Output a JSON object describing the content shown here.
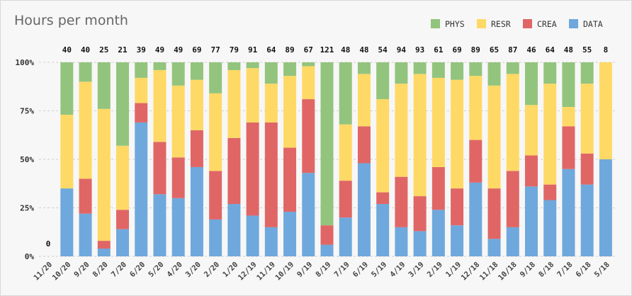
{
  "chart_data": {
    "type": "bar",
    "stacked": "percent",
    "title": "Hours per month",
    "xlabel": "",
    "ylabel": "",
    "ylim": [
      0,
      100
    ],
    "y_ticks": [
      "0%",
      "25%",
      "50%",
      "75%",
      "100%"
    ],
    "grid": true,
    "legend_position": "top-right",
    "categories": [
      "11/20",
      "10/20",
      "9/20",
      "8/20",
      "7/20",
      "6/20",
      "5/20",
      "4/20",
      "3/20",
      "2/20",
      "1/20",
      "12/19",
      "11/19",
      "10/19",
      "9/19",
      "8/19",
      "7/19",
      "6/19",
      "5/19",
      "4/19",
      "3/19",
      "2/19",
      "1/19",
      "12/18",
      "11/18",
      "10/18",
      "9/18",
      "8/18",
      "7/18",
      "6/18",
      "5/18"
    ],
    "totals": [
      0,
      40,
      40,
      25,
      21,
      39,
      49,
      49,
      69,
      77,
      79,
      91,
      64,
      89,
      67,
      121,
      48,
      48,
      54,
      94,
      93,
      61,
      69,
      89,
      65,
      87,
      46,
      64,
      48,
      55,
      8
    ],
    "series": [
      {
        "name": "DATA",
        "color": "#6fa8dc",
        "values": [
          0,
          35,
          22,
          4,
          14,
          69,
          32,
          30,
          46,
          19,
          27,
          21,
          15,
          23,
          43,
          6,
          20,
          48,
          27,
          15,
          13,
          24,
          16,
          38,
          9,
          15,
          36,
          29,
          45,
          37,
          50
        ]
      },
      {
        "name": "CREA",
        "color": "#e06666",
        "values": [
          0,
          0,
          18,
          4,
          10,
          10,
          27,
          21,
          19,
          25,
          34,
          48,
          54,
          33,
          38,
          10,
          19,
          19,
          6,
          26,
          18,
          22,
          19,
          22,
          26,
          29,
          16,
          8,
          22,
          16,
          0
        ]
      },
      {
        "name": "RESR",
        "color": "#ffd966",
        "values": [
          0,
          38,
          50,
          68,
          33,
          13,
          37,
          37,
          26,
          40,
          35,
          28,
          20,
          37,
          17,
          0,
          29,
          27,
          48,
          48,
          63,
          46,
          56,
          33,
          53,
          50,
          26,
          52,
          10,
          36,
          50
        ]
      },
      {
        "name": "PHYS",
        "color": "#93c47d",
        "values": [
          0,
          27,
          10,
          24,
          43,
          8,
          4,
          12,
          9,
          16,
          4,
          3,
          11,
          7,
          2,
          84,
          32,
          6,
          19,
          11,
          6,
          8,
          9,
          7,
          12,
          6,
          22,
          11,
          23,
          11,
          0
        ]
      }
    ],
    "legend_order": [
      "PHYS",
      "RESR",
      "CREA",
      "DATA"
    ]
  }
}
